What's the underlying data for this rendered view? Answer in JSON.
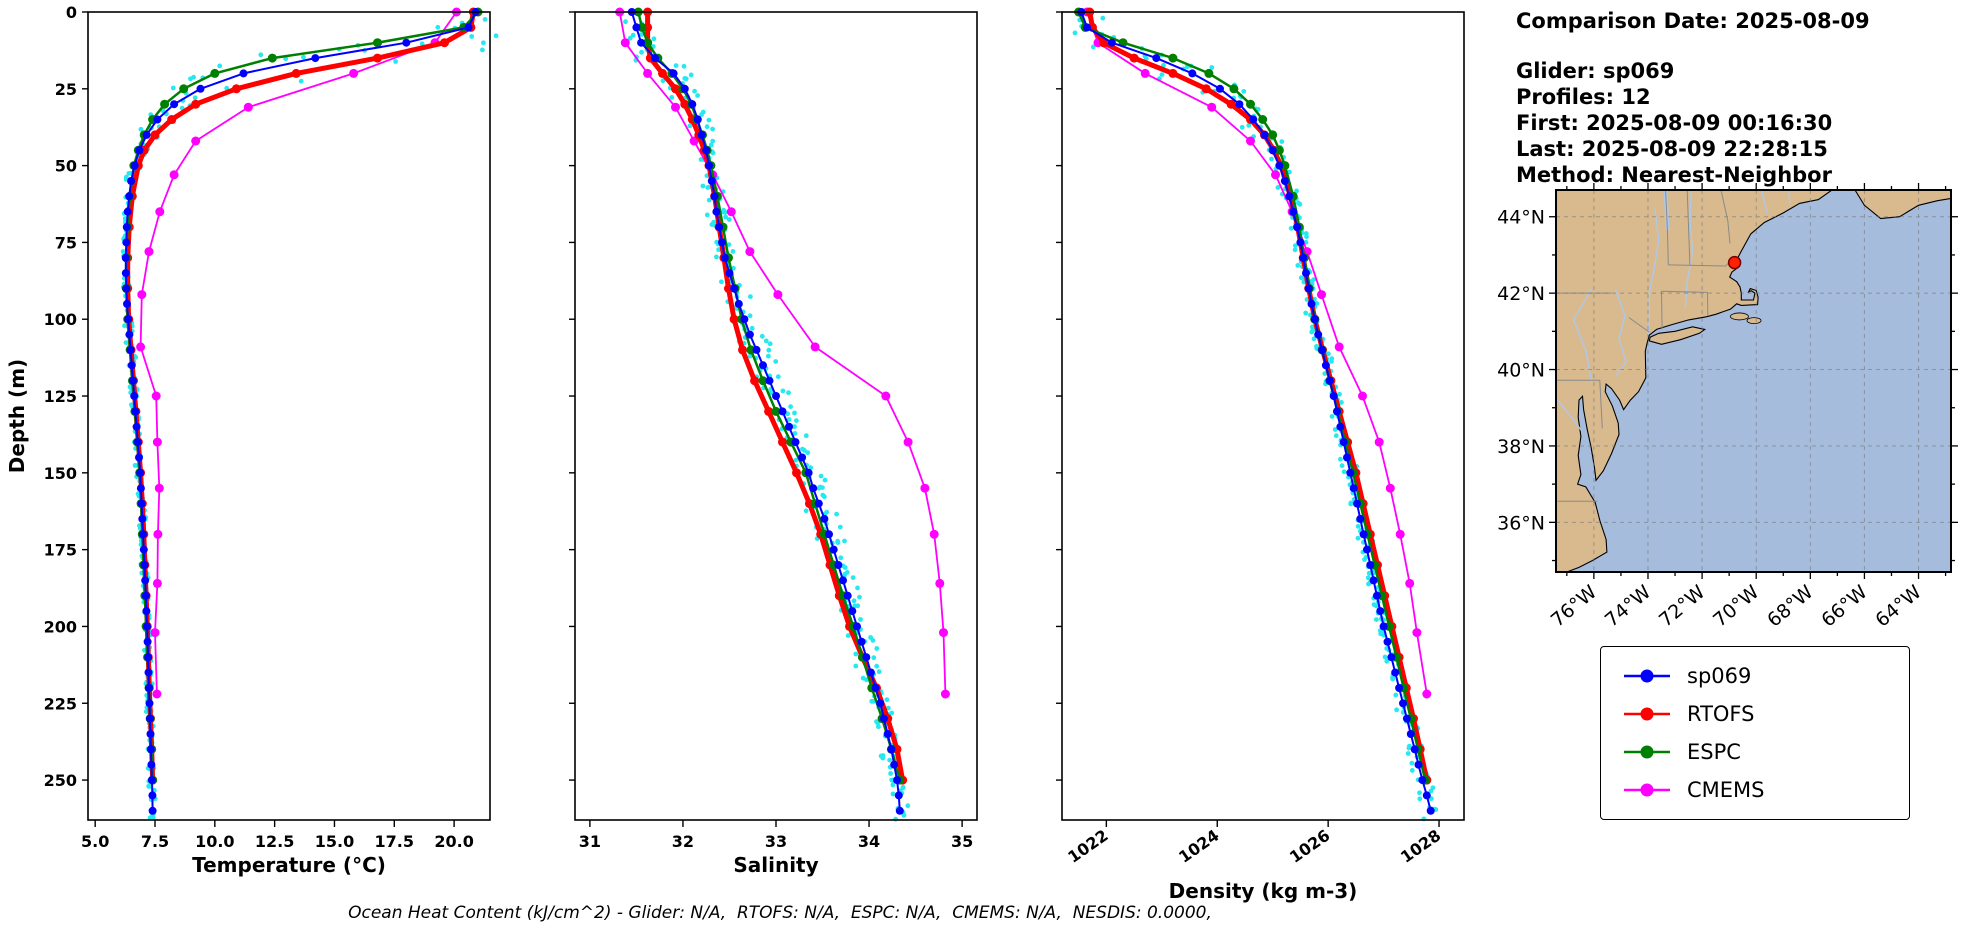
{
  "colors": {
    "sp069": "#0000ff",
    "rtofs": "#ff0000",
    "espc": "#008000",
    "cmems": "#ff00ff",
    "obs": "#00e5ee",
    "land": "#d8ba8e",
    "ocean": "#a5bcdd",
    "grid": "#777777",
    "marker_edge": "#7a0000"
  },
  "info": {
    "comparison_date": "Comparison Date: 2025-08-09",
    "glider": "Glider: sp069",
    "profiles": "Profiles: 12",
    "first": "First: 2025-08-09 00:16:30",
    "last": "Last: 2025-08-09 22:28:15",
    "method": "Method: Nearest-Neighbor"
  },
  "legend": {
    "items": [
      {
        "label": "sp069",
        "color": "#0000ff"
      },
      {
        "label": "RTOFS",
        "color": "#ff0000"
      },
      {
        "label": "ESPC",
        "color": "#008000"
      },
      {
        "label": "CMEMS",
        "color": "#ff00ff"
      }
    ]
  },
  "caption": "Ocean Heat Content (kJ/cm^2) - Glider: N/A,  RTOFS: N/A,  ESPC: N/A,  CMEMS: N/A,  NESDIS: 0.0000,",
  "map": {
    "lat_ticks": [
      44,
      42,
      40,
      38,
      36
    ],
    "lat_labels": [
      "44°N",
      "42°N",
      "40°N",
      "38°N",
      "36°N"
    ],
    "lon_ticks": [
      76,
      74,
      72,
      70,
      68,
      66,
      64
    ],
    "lon_labels": [
      "76°W",
      "74°W",
      "72°W",
      "70°W",
      "68°W",
      "66°W",
      "64°W"
    ],
    "extent": {
      "lon_min": -77.4,
      "lon_max": -62.8,
      "lat_min": 34.7,
      "lat_max": 44.7
    },
    "marker": {
      "lon": -70.8,
      "lat": 42.8,
      "color": "#ff2200"
    }
  },
  "chart_data": {
    "type": "line",
    "ylabel": "Depth (m)",
    "ylim": [
      0,
      263
    ],
    "yticks": [
      0,
      25,
      50,
      75,
      100,
      125,
      150,
      175,
      200,
      225,
      250
    ],
    "series_names": [
      "sp069",
      "RTOFS",
      "ESPC",
      "CMEMS"
    ],
    "observations": {
      "label": "glider raw profile samples",
      "render": "scatter-around-sp069",
      "points_per_sample": 5
    },
    "depth": {
      "sp069": [
        0,
        5,
        10,
        15,
        20,
        25,
        30,
        35,
        40,
        45,
        50,
        55,
        60,
        65,
        70,
        75,
        80,
        85,
        90,
        95,
        100,
        105,
        110,
        115,
        120,
        125,
        130,
        135,
        140,
        145,
        150,
        155,
        160,
        165,
        170,
        175,
        180,
        185,
        190,
        195,
        200,
        205,
        210,
        215,
        220,
        225,
        230,
        235,
        240,
        245,
        250,
        255,
        260
      ],
      "RTOFS": [
        0,
        5,
        10,
        15,
        20,
        25,
        30,
        35,
        40,
        45,
        50,
        60,
        70,
        80,
        90,
        100,
        110,
        120,
        130,
        140,
        150,
        160,
        170,
        180,
        190,
        200,
        210,
        220,
        230,
        240,
        250
      ],
      "ESPC": [
        0,
        5,
        10,
        15,
        20,
        25,
        30,
        35,
        40,
        45,
        50,
        60,
        70,
        80,
        90,
        100,
        110,
        120,
        130,
        140,
        150,
        160,
        170,
        180,
        190,
        200,
        210,
        220,
        230,
        240,
        250
      ],
      "CMEMS": [
        0,
        10,
        20,
        31,
        42,
        53,
        65,
        78,
        92,
        109,
        125,
        140,
        155,
        170,
        186,
        202,
        222
      ]
    },
    "panels": [
      {
        "key": "temperature",
        "xlabel": "Temperature (°C)",
        "xlim": [
          4.7,
          21.5
        ],
        "xticks": [
          5.0,
          7.5,
          10.0,
          12.5,
          15.0,
          17.5,
          20.0
        ],
        "xtick_labels": [
          "5.0",
          "7.5",
          "10.0",
          "12.5",
          "15.0",
          "17.5",
          "20.0"
        ],
        "rotate_xticks": false,
        "obs_jitter": {
          "base": 0.12,
          "slope_factor": 5
        },
        "values": {
          "sp069": [
            20.9,
            20.6,
            18.0,
            14.2,
            11.2,
            9.4,
            8.3,
            7.6,
            7.15,
            6.85,
            6.65,
            6.5,
            6.42,
            6.36,
            6.32,
            6.3,
            6.28,
            6.28,
            6.3,
            6.33,
            6.38,
            6.43,
            6.48,
            6.53,
            6.58,
            6.63,
            6.68,
            6.73,
            6.78,
            6.83,
            6.88,
            6.91,
            6.94,
            6.97,
            7.0,
            7.03,
            7.06,
            7.09,
            7.12,
            7.14,
            7.17,
            7.19,
            7.21,
            7.23,
            7.25,
            7.27,
            7.29,
            7.31,
            7.33,
            7.35,
            7.37,
            7.39,
            7.4
          ],
          "RTOFS": [
            20.8,
            20.7,
            19.6,
            16.8,
            13.4,
            10.9,
            9.2,
            8.2,
            7.5,
            7.05,
            6.8,
            6.55,
            6.42,
            6.36,
            6.36,
            6.4,
            6.5,
            6.6,
            6.7,
            6.8,
            6.9,
            6.97,
            7.03,
            7.08,
            7.13,
            7.18,
            7.22,
            7.26,
            7.31,
            7.36,
            7.4
          ],
          "ESPC": [
            21.0,
            20.4,
            16.8,
            12.4,
            10.0,
            8.7,
            7.9,
            7.4,
            7.05,
            6.8,
            6.62,
            6.45,
            6.35,
            6.3,
            6.3,
            6.36,
            6.46,
            6.56,
            6.66,
            6.76,
            6.86,
            6.92,
            6.97,
            7.02,
            7.08,
            7.13,
            7.19,
            7.25,
            7.3,
            7.35,
            7.4
          ],
          "CMEMS": [
            20.1,
            19.2,
            15.8,
            11.4,
            9.2,
            8.3,
            7.7,
            7.25,
            6.95,
            6.9,
            7.55,
            7.6,
            7.68,
            7.62,
            7.6,
            7.5,
            7.58
          ]
        }
      },
      {
        "key": "salinity",
        "xlabel": "Salinity",
        "xlim": [
          30.84,
          35.16
        ],
        "xticks": [
          31,
          32,
          33,
          34,
          35
        ],
        "xtick_labels": [
          "31",
          "32",
          "33",
          "34",
          "35"
        ],
        "rotate_xticks": false,
        "obs_jitter": {
          "base": 0.08,
          "slope_factor": 5
        },
        "values": {
          "sp069": [
            31.45,
            31.5,
            31.55,
            31.7,
            31.9,
            32.02,
            32.1,
            32.16,
            32.2,
            32.25,
            32.28,
            32.31,
            32.34,
            32.36,
            32.39,
            32.42,
            32.45,
            32.5,
            32.55,
            32.6,
            32.66,
            32.72,
            32.79,
            32.86,
            32.93,
            33.0,
            33.07,
            33.14,
            33.21,
            33.28,
            33.35,
            33.4,
            33.46,
            33.52,
            33.57,
            33.62,
            33.67,
            33.72,
            33.77,
            33.82,
            33.87,
            33.92,
            33.97,
            34.02,
            34.07,
            34.12,
            34.16,
            34.2,
            34.24,
            34.27,
            34.3,
            34.32,
            34.33
          ],
          "RTOFS": [
            31.62,
            31.62,
            31.62,
            31.65,
            31.78,
            31.92,
            32.02,
            32.1,
            32.17,
            32.23,
            32.28,
            32.34,
            32.39,
            32.44,
            32.49,
            32.55,
            32.64,
            32.77,
            32.92,
            33.07,
            33.22,
            33.36,
            33.48,
            33.58,
            33.68,
            33.79,
            33.93,
            34.08,
            34.2,
            34.3,
            34.36
          ],
          "ESPC": [
            31.52,
            31.56,
            31.62,
            31.73,
            31.88,
            32.0,
            32.09,
            32.15,
            32.21,
            32.26,
            32.3,
            32.37,
            32.43,
            32.49,
            32.56,
            32.63,
            32.73,
            32.86,
            33.0,
            33.16,
            33.32,
            33.42,
            33.52,
            33.62,
            33.72,
            33.83,
            33.93,
            34.03,
            34.14,
            34.24,
            34.33
          ],
          "CMEMS": [
            31.32,
            31.38,
            31.62,
            31.92,
            32.12,
            32.32,
            32.52,
            32.72,
            33.02,
            33.42,
            34.18,
            34.42,
            34.6,
            34.7,
            34.76,
            34.8,
            34.82
          ]
        }
      },
      {
        "key": "density",
        "xlabel": "Density (kg m-3)",
        "xlim": [
          1021.2,
          1028.45
        ],
        "xticks": [
          1022,
          1024,
          1026,
          1028
        ],
        "xtick_labels": [
          "1022",
          "1024",
          "1026",
          "1028"
        ],
        "rotate_xticks": true,
        "obs_jitter": {
          "base": 0.06,
          "slope_factor": 5
        },
        "values": {
          "sp069": [
            1021.55,
            1021.65,
            1022.1,
            1022.9,
            1023.55,
            1024.05,
            1024.4,
            1024.65,
            1024.85,
            1025.0,
            1025.12,
            1025.22,
            1025.3,
            1025.37,
            1025.44,
            1025.5,
            1025.55,
            1025.6,
            1025.65,
            1025.7,
            1025.76,
            1025.82,
            1025.89,
            1025.96,
            1026.03,
            1026.1,
            1026.16,
            1026.22,
            1026.28,
            1026.34,
            1026.4,
            1026.46,
            1026.52,
            1026.58,
            1026.64,
            1026.7,
            1026.76,
            1026.82,
            1026.88,
            1026.94,
            1027.0,
            1027.07,
            1027.14,
            1027.21,
            1027.28,
            1027.35,
            1027.42,
            1027.49,
            1027.56,
            1027.63,
            1027.7,
            1027.78,
            1027.85
          ],
          "RTOFS": [
            1021.7,
            1021.75,
            1021.95,
            1022.5,
            1023.2,
            1023.8,
            1024.25,
            1024.6,
            1024.85,
            1025.02,
            1025.15,
            1025.32,
            1025.45,
            1025.55,
            1025.65,
            1025.76,
            1025.9,
            1026.05,
            1026.2,
            1026.35,
            1026.5,
            1026.63,
            1026.76,
            1026.89,
            1027.02,
            1027.15,
            1027.28,
            1027.41,
            1027.54,
            1027.66,
            1027.78
          ],
          "ESPC": [
            1021.5,
            1021.62,
            1022.3,
            1023.2,
            1023.85,
            1024.3,
            1024.6,
            1024.82,
            1025.0,
            1025.12,
            1025.22,
            1025.37,
            1025.48,
            1025.57,
            1025.66,
            1025.76,
            1025.89,
            1026.03,
            1026.17,
            1026.31,
            1026.45,
            1026.58,
            1026.71,
            1026.84,
            1026.97,
            1027.1,
            1027.23,
            1027.36,
            1027.49,
            1027.62,
            1027.75
          ],
          "CMEMS": [
            1021.65,
            1021.85,
            1022.7,
            1023.9,
            1024.6,
            1025.05,
            1025.35,
            1025.62,
            1025.88,
            1026.2,
            1026.62,
            1026.92,
            1027.12,
            1027.3,
            1027.47,
            1027.6,
            1027.78
          ]
        }
      }
    ]
  }
}
